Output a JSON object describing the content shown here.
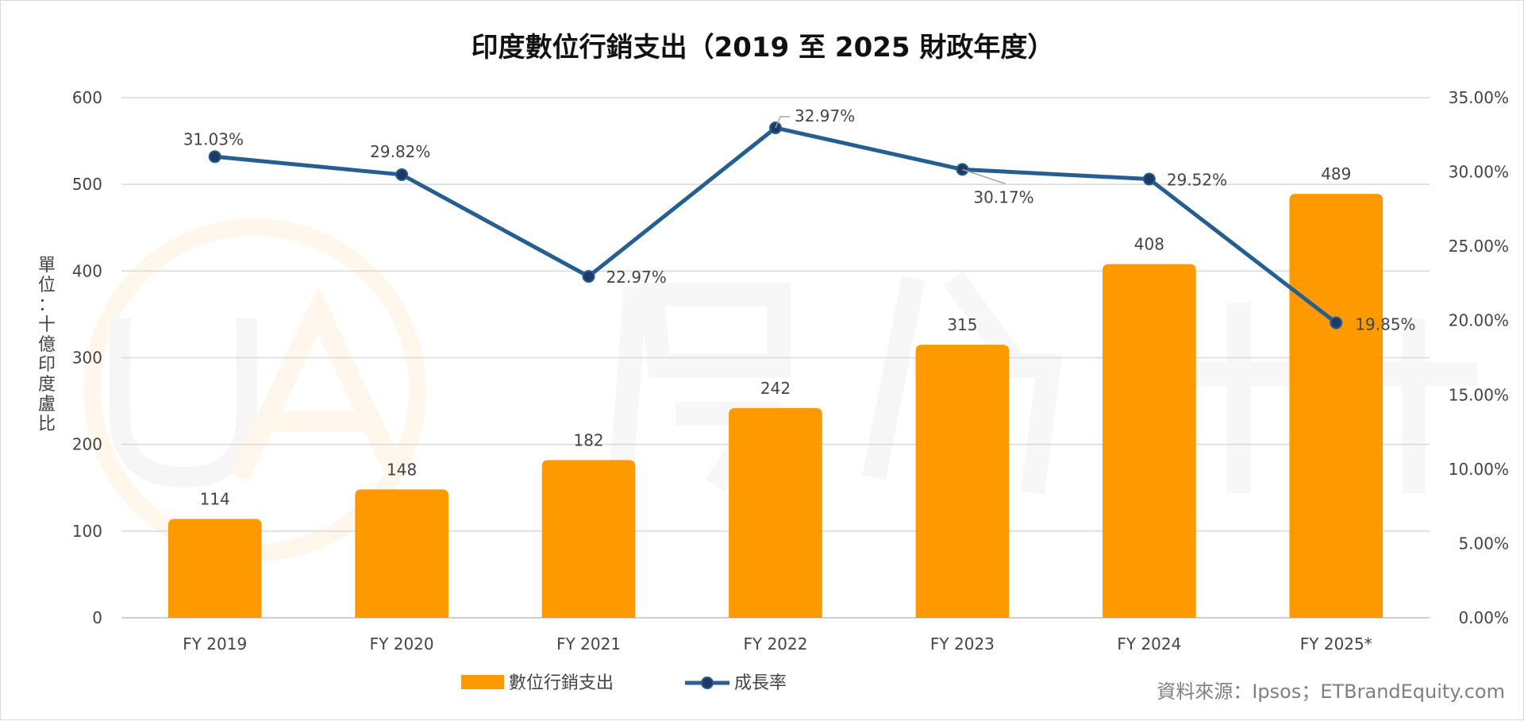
{
  "chart_data": {
    "type": "bar+line",
    "title": "印度數位行銷支出（2019 至 2025 財政年度）",
    "ylabel": "單位：十億印度盧比",
    "categories": [
      "FY 2019",
      "FY 2020",
      "FY 2021",
      "FY 2022",
      "FY 2023",
      "FY 2024",
      "FY 2025*"
    ],
    "series": [
      {
        "name": "數位行銷支出",
        "type": "bar",
        "axis": "left",
        "color": "#FF9900",
        "values": [
          114,
          148,
          182,
          242,
          315,
          408,
          489
        ],
        "labels": [
          "114",
          "148",
          "182",
          "242",
          "315",
          "408",
          "489"
        ]
      },
      {
        "name": "成長率",
        "type": "line",
        "axis": "right",
        "color": "#255E91",
        "values": [
          31.03,
          29.82,
          22.97,
          32.97,
          30.17,
          29.52,
          19.85
        ],
        "labels": [
          "31.03%",
          "29.82%",
          "22.97%",
          "32.97%",
          "30.17%",
          "29.52%",
          "19.85%"
        ]
      }
    ],
    "y_left": {
      "min": 0,
      "max": 600,
      "ticks": [
        "0",
        "100",
        "200",
        "300",
        "400",
        "500",
        "600"
      ]
    },
    "y_right": {
      "min": 0,
      "max": 35,
      "ticks": [
        "0.00%",
        "5.00%",
        "10.00%",
        "15.00%",
        "20.00%",
        "25.00%",
        "30.00%",
        "35.00%"
      ]
    },
    "grid": true,
    "legend_position": "bottom",
    "source": "資料來源：Ipsos；ETBrandEquity.com",
    "watermark": "優分析 UA"
  }
}
